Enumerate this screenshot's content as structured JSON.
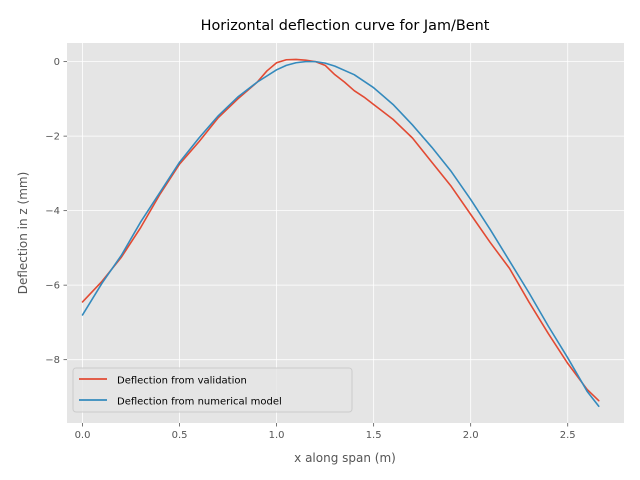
{
  "chart_data": {
    "type": "line",
    "title": "Horizontal deflection curve for Jam/Bent",
    "xlabel": "x along span (m)",
    "ylabel": "Deflection in z (mm)",
    "xlim": [
      -0.08,
      2.79
    ],
    "ylim": [
      -9.7,
      0.5
    ],
    "xticks": [
      0.0,
      0.5,
      1.0,
      1.5,
      2.0,
      2.5
    ],
    "xtick_labels": [
      "0.0",
      "0.5",
      "1.0",
      "1.5",
      "2.0",
      "2.5"
    ],
    "yticks": [
      0,
      -2,
      -4,
      -6,
      -8
    ],
    "ytick_labels": [
      "0",
      "−2",
      "−4",
      "−6",
      "−8"
    ],
    "grid": true,
    "legend_position": "lower-left",
    "series": [
      {
        "name": "Deflection from validation",
        "color": "#E24A33",
        "x": [
          0.0,
          0.1,
          0.2,
          0.3,
          0.4,
          0.5,
          0.6,
          0.7,
          0.8,
          0.9,
          0.95,
          1.0,
          1.05,
          1.1,
          1.15,
          1.2,
          1.25,
          1.3,
          1.35,
          1.4,
          1.45,
          1.5,
          1.6,
          1.7,
          1.8,
          1.9,
          2.0,
          2.1,
          2.2,
          2.3,
          2.4,
          2.5,
          2.6,
          2.66
        ],
        "y": [
          -6.45,
          -5.9,
          -5.25,
          -4.45,
          -3.55,
          -2.75,
          -2.15,
          -1.5,
          -1.0,
          -0.55,
          -0.25,
          -0.03,
          0.05,
          0.06,
          0.04,
          0.0,
          -0.1,
          -0.35,
          -0.55,
          -0.78,
          -0.95,
          -1.15,
          -1.55,
          -2.05,
          -2.7,
          -3.35,
          -4.1,
          -4.85,
          -5.55,
          -6.45,
          -7.3,
          -8.1,
          -8.8,
          -9.1
        ]
      },
      {
        "name": "Deflection from numerical model",
        "color": "#348ABD",
        "x": [
          0.0,
          0.1,
          0.2,
          0.3,
          0.4,
          0.5,
          0.6,
          0.7,
          0.8,
          0.9,
          1.0,
          1.05,
          1.1,
          1.15,
          1.2,
          1.25,
          1.3,
          1.4,
          1.5,
          1.6,
          1.7,
          1.8,
          1.9,
          2.0,
          2.1,
          2.2,
          2.3,
          2.4,
          2.5,
          2.6,
          2.66
        ],
        "y": [
          -6.8,
          -5.95,
          -5.2,
          -4.3,
          -3.5,
          -2.7,
          -2.05,
          -1.45,
          -0.95,
          -0.55,
          -0.22,
          -0.1,
          -0.03,
          0.0,
          0.0,
          -0.04,
          -0.12,
          -0.35,
          -0.7,
          -1.15,
          -1.7,
          -2.3,
          -2.95,
          -3.7,
          -4.5,
          -5.35,
          -6.2,
          -7.1,
          -7.95,
          -8.85,
          -9.25
        ]
      }
    ]
  }
}
